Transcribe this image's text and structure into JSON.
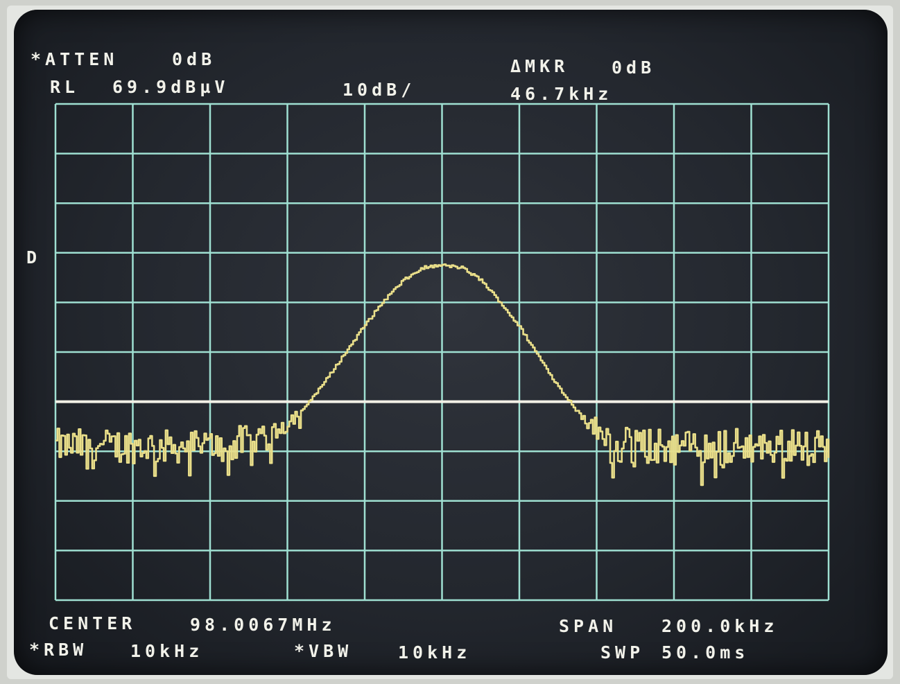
{
  "colors": {
    "grid": "#9fe0d2",
    "trace": "#eadf8a",
    "reference_line": "#f2f0e6",
    "text": "#f2f2ea",
    "screen": "#23272e"
  },
  "header": {
    "atten_label": "*ATTEN",
    "atten_value": "0dB",
    "ref_level_label": "RL",
    "ref_level_value": "69.9dBµV",
    "scale": "10dB/",
    "marker_label": "ΔMKR",
    "marker_delta_amplitude": "0dB",
    "marker_delta_frequency": "46.7kHz"
  },
  "side_marker": "D",
  "footer": {
    "center_label": "CENTER",
    "center_value": "98.0067MHz",
    "span_label": "SPAN",
    "span_value": "200.0kHz",
    "rbw_label": "*RBW",
    "rbw_value": "10kHz",
    "vbw_label": "*VBW",
    "vbw_value": "10kHz",
    "sweep_label": "SWP",
    "sweep_value": "50.0ms"
  },
  "chart_data": {
    "type": "line",
    "title": "",
    "xlabel": "",
    "ylabel": "",
    "x_unit": "kHz offset from center",
    "y_unit": "dB below reference level",
    "xlim": [
      -100,
      100
    ],
    "ylim": [
      -100,
      0
    ],
    "grid": true,
    "grid_divisions": {
      "x": 10,
      "y": 10
    },
    "display_line_db": -60,
    "noise_floor_db": -69,
    "series": [
      {
        "values_x": [
          -100,
          -55,
          -50,
          -45,
          -40,
          -35,
          -30,
          -25,
          -20,
          -15,
          -10,
          -5,
          0,
          5,
          10,
          15,
          20,
          25,
          30,
          35,
          40,
          45,
          100
        ],
        "values_y": [
          -69,
          -69,
          -68,
          -66.5,
          -64,
          -60.5,
          -55.5,
          -50,
          -44.5,
          -39.5,
          -35.5,
          -33,
          -32.5,
          -33,
          -35.5,
          -40,
          -45,
          -51,
          -57,
          -62,
          -66,
          -69,
          -69
        ]
      }
    ]
  }
}
